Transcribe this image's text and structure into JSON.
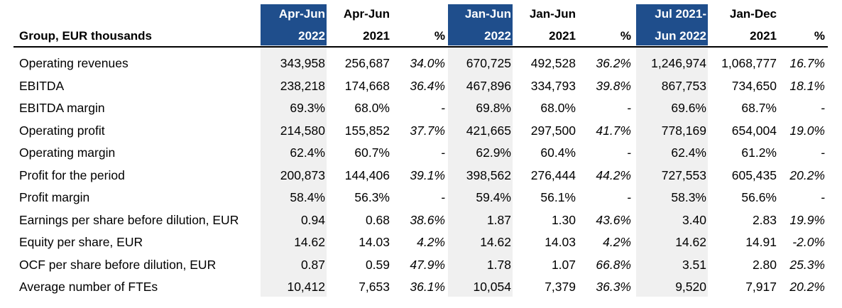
{
  "table": {
    "title": "Group, EUR thousands",
    "columns": [
      {
        "line1": "Apr-Jun",
        "line2": "2022",
        "highlight": true
      },
      {
        "line1": "Apr-Jun",
        "line2": "2021",
        "highlight": false
      },
      {
        "line1": "",
        "line2": "%",
        "highlight": false
      },
      {
        "line1": "Jan-Jun",
        "line2": "2022",
        "highlight": true
      },
      {
        "line1": "Jan-Jun",
        "line2": "2021",
        "highlight": false
      },
      {
        "line1": "",
        "line2": "%",
        "highlight": false
      },
      {
        "line1": "Jul 2021-",
        "line2": "Jun 2022",
        "highlight": true
      },
      {
        "line1": "Jan-Dec",
        "line2": "2021",
        "highlight": false
      },
      {
        "line1": "",
        "line2": "%",
        "highlight": false
      }
    ],
    "rows": [
      {
        "label": "Operating revenues",
        "values": [
          "343,958",
          "256,687",
          "34.0%",
          "670,725",
          "492,528",
          "36.2%",
          "1,246,974",
          "1,068,777",
          "16.7%"
        ]
      },
      {
        "label": "EBITDA",
        "values": [
          "238,218",
          "174,668",
          "36.4%",
          "467,896",
          "334,793",
          "39.8%",
          "867,753",
          "734,650",
          "18.1%"
        ]
      },
      {
        "label": "EBITDA margin",
        "values": [
          "69.3%",
          "68.0%",
          "-",
          "69.8%",
          "68.0%",
          "-",
          "69.6%",
          "68.7%",
          "-"
        ]
      },
      {
        "label": "Operating profit",
        "values": [
          "214,580",
          "155,852",
          "37.7%",
          "421,665",
          "297,500",
          "41.7%",
          "778,169",
          "654,004",
          "19.0%"
        ]
      },
      {
        "label": "Operating margin",
        "values": [
          "62.4%",
          "60.7%",
          "-",
          "62.9%",
          "60.4%",
          "-",
          "62.4%",
          "61.2%",
          "-"
        ]
      },
      {
        "label": "Profit for the period",
        "values": [
          "200,873",
          "144,406",
          "39.1%",
          "398,562",
          "276,444",
          "44.2%",
          "727,553",
          "605,435",
          "20.2%"
        ]
      },
      {
        "label": "Profit margin",
        "values": [
          "58.4%",
          "56.3%",
          "-",
          "59.4%",
          "56.1%",
          "-",
          "58.3%",
          "56.6%",
          "-"
        ]
      },
      {
        "label": "Earnings per share before dilution, EUR",
        "values": [
          "0.94",
          "0.68",
          "38.6%",
          "1.87",
          "1.30",
          "43.6%",
          "3.40",
          "2.83",
          "19.9%"
        ]
      },
      {
        "label": "Equity per share, EUR",
        "values": [
          "14.62",
          "14.03",
          "4.2%",
          "14.62",
          "14.03",
          "4.2%",
          "14.62",
          "14.91",
          "-2.0%"
        ]
      },
      {
        "label": "OCF per share before dilution, EUR",
        "values": [
          "0.87",
          "0.59",
          "47.9%",
          "1.78",
          "1.07",
          "66.8%",
          "3.51",
          "2.80",
          "25.3%"
        ]
      },
      {
        "label": "Average number of FTEs",
        "values": [
          "10,412",
          "7,653",
          "36.1%",
          "10,054",
          "7,379",
          "36.3%",
          "9,520",
          "7,917",
          "20.2%"
        ]
      }
    ],
    "colors": {
      "highlight_header": "#1f4e8c",
      "highlight_column": "#f0f0f0",
      "header_text_highlight": "#ffffff"
    }
  }
}
